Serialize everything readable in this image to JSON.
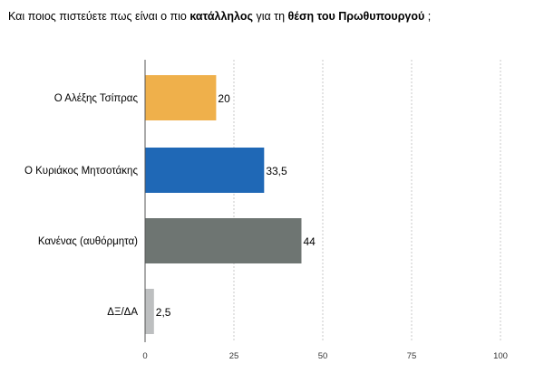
{
  "chart_data": {
    "type": "bar",
    "orientation": "horizontal",
    "title_parts": [
      {
        "text": "Και ποιος πιστεύετε πως είναι ο πιο ",
        "bold": false
      },
      {
        "text": "κατάλληλος",
        "bold": true
      },
      {
        "text": " για τη ",
        "bold": false
      },
      {
        "text": "θέση του Πρωθυπουργού",
        "bold": true
      },
      {
        "text": " ;",
        "bold": false
      }
    ],
    "categories": [
      "Ο Αλέξης Τσίπρας",
      "Ο Κυριάκος Μητσοτάκης",
      "Κανένας (αυθόρμητα)",
      "ΔΞ/ΔΑ"
    ],
    "values": [
      20,
      33.5,
      44,
      2.5
    ],
    "value_labels": [
      "20",
      "33,5",
      "44",
      "2,5"
    ],
    "colors": [
      "#efb04b",
      "#1f68b6",
      "#6e7572",
      "#bdbfc0"
    ],
    "xlim": [
      0,
      100
    ],
    "xticks": [
      0,
      25,
      50,
      75,
      100
    ],
    "xtick_labels": [
      "0",
      "25",
      "50",
      "75",
      "100"
    ],
    "grid": true,
    "legend": "none"
  }
}
